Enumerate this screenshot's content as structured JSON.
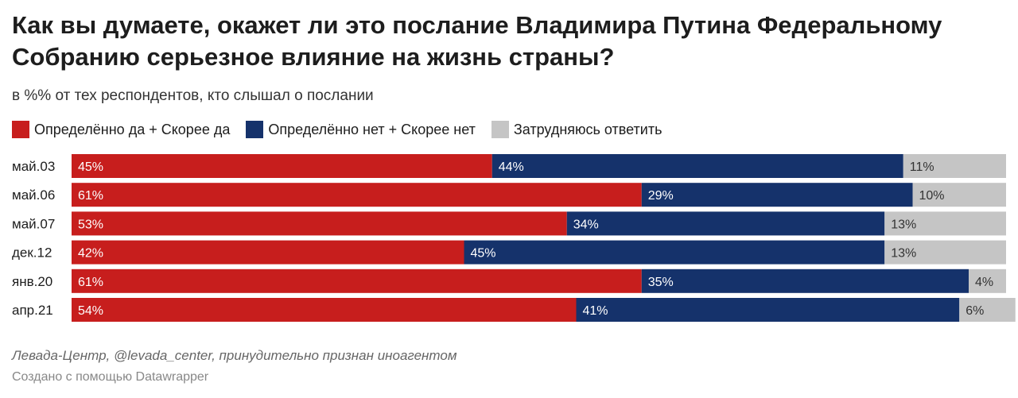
{
  "header": {
    "title": "Как вы думаете, окажет ли это послание Владимира Путина Федеральному Собранию серьезное влияние на жизнь страны?",
    "subtitle": "в %% от тех респондентов, кто слышал о послании"
  },
  "legend": [
    {
      "label": "Определённо да + Скорее да",
      "color": "#c71e1d"
    },
    {
      "label": "Определённо нет + Скорее нет",
      "color": "#15326b"
    },
    {
      "label": "Затрудняюсь ответить",
      "color": "#c5c5c5"
    }
  ],
  "chart_data": {
    "type": "bar",
    "orientation": "horizontal",
    "stacked": true,
    "categories": [
      "май.03",
      "май.06",
      "май.07",
      "дек.12",
      "янв.20",
      "апр.21"
    ],
    "series": [
      {
        "name": "Определённо да + Скорее да",
        "color": "#c71e1d",
        "values": [
          45,
          61,
          53,
          42,
          61,
          54
        ],
        "labels": [
          "45%",
          "61%",
          "53%",
          "42%",
          "61%",
          "54%"
        ]
      },
      {
        "name": "Определённо нет + Скорее нет",
        "color": "#15326b",
        "values": [
          44,
          29,
          34,
          45,
          35,
          41
        ],
        "labels": [
          "44%",
          "29%",
          "34%",
          "45%",
          "35%",
          "41%"
        ]
      },
      {
        "name": "Затрудняюсь ответить",
        "color": "#c5c5c5",
        "values": [
          11,
          10,
          13,
          13,
          4,
          6
        ],
        "labels": [
          "11%",
          "10%",
          "13%",
          "13%",
          "4%",
          "6%"
        ]
      }
    ],
    "xlim": [
      0,
      100
    ]
  },
  "footer": {
    "source": "Левада-Центр, @levada_center, принудительно признан иноагентом",
    "credit": "Создано с помощью Datawrapper"
  }
}
